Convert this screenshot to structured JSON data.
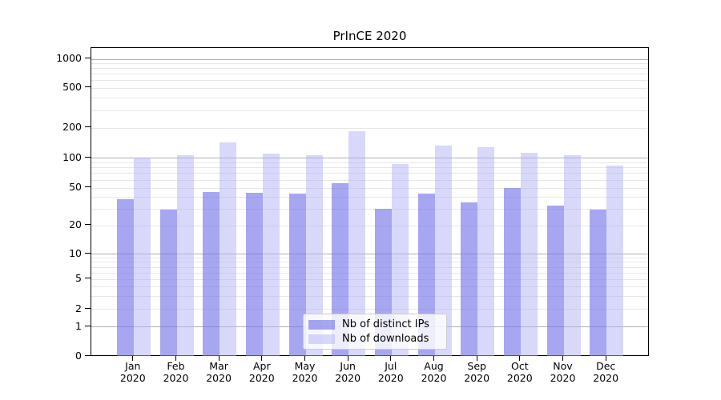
{
  "chart_data": {
    "type": "bar",
    "title": "PrInCE 2020",
    "categories": [
      "Jan 2020",
      "Feb 2020",
      "Mar 2020",
      "Apr 2020",
      "May 2020",
      "Jun 2020",
      "Jul 2020",
      "Aug 2020",
      "Sep 2020",
      "Oct 2020",
      "Nov 2020",
      "Dec 2020"
    ],
    "x_tick_months": [
      "Jan",
      "Feb",
      "Mar",
      "Apr",
      "May",
      "Jun",
      "Jul",
      "Aug",
      "Sep",
      "Oct",
      "Nov",
      "Dec"
    ],
    "x_tick_year": "2020",
    "series": [
      {
        "name": "Nb of distinct IPs",
        "color_hex": "#a7a7f3",
        "fill_rgba": "rgba(119,119,233,0.65)",
        "values": [
          38,
          29,
          45,
          44,
          43,
          55,
          30,
          43,
          35,
          50,
          32,
          29
        ]
      },
      {
        "name": "Nb of downloads",
        "color_hex": "#d8d8fa",
        "fill_rgba": "rgba(178,178,245,0.5)",
        "values": [
          100,
          106,
          142,
          110,
          107,
          184,
          87,
          132,
          127,
          112,
          106,
          84
        ]
      }
    ],
    "yscale": "symlog",
    "ylim": [
      0,
      1000
    ],
    "yticks": [
      0,
      1,
      2,
      5,
      10,
      20,
      50,
      100,
      200,
      500,
      1000
    ],
    "ytick_labels": [
      "0",
      "1",
      "2",
      "5",
      "10",
      "20",
      "50",
      "100",
      "200",
      "500",
      "1000"
    ],
    "major_gridlines": [
      1,
      10,
      100,
      1000
    ],
    "minor_gridlines": [
      2,
      3,
      4,
      5,
      6,
      7,
      8,
      9,
      20,
      30,
      40,
      50,
      60,
      70,
      80,
      90,
      200,
      300,
      400,
      500,
      600,
      700,
      800,
      900
    ],
    "grid": true,
    "legend": {
      "position": "lower-center",
      "entries": [
        "Nb of distinct IPs",
        "Nb of downloads"
      ]
    },
    "colors": {
      "grid_major": "#b0b0b0",
      "grid_minor": "#e7e7e7",
      "spine": "#000000",
      "text": "#000000",
      "background": "#ffffff"
    }
  }
}
